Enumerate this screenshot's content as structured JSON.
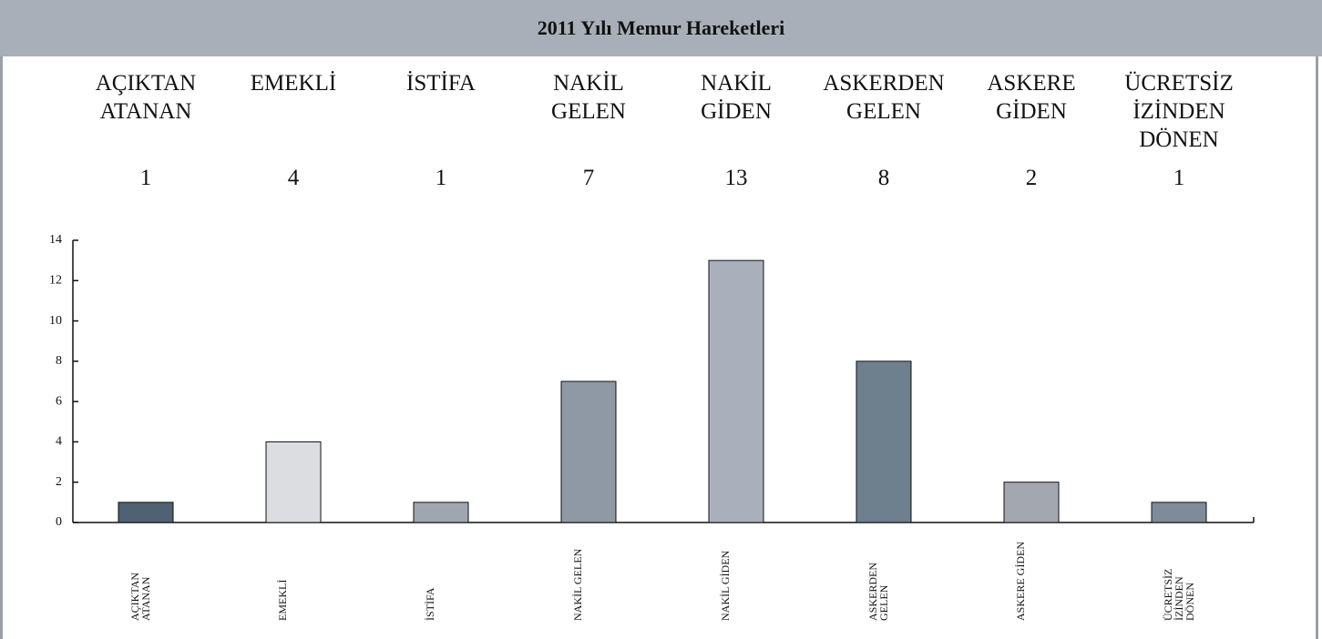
{
  "chart_data": {
    "type": "bar",
    "title": "2011 Yılı Memur Hareketleri",
    "categories": [
      "AÇIKTAN ATANAN",
      "EMEKLİ",
      "İSTİFA",
      "NAKİL GELEN",
      "NAKİL GİDEN",
      "ASKERDEN GELEN",
      "ASKERE GİDEN",
      "ÜCRETSİZ İZİNDEN DÖNEN"
    ],
    "values": [
      1,
      4,
      1,
      7,
      13,
      8,
      2,
      1
    ],
    "colors": [
      "#4f6172",
      "#dcdde1",
      "#a0a6af",
      "#8e99a5",
      "#aab0bb",
      "#6e7f8e",
      "#a3a8b0",
      "#7f8b99"
    ],
    "ylim": [
      0,
      14
    ],
    "yticks": [
      0,
      2,
      4,
      6,
      8,
      10,
      12,
      14
    ]
  }
}
